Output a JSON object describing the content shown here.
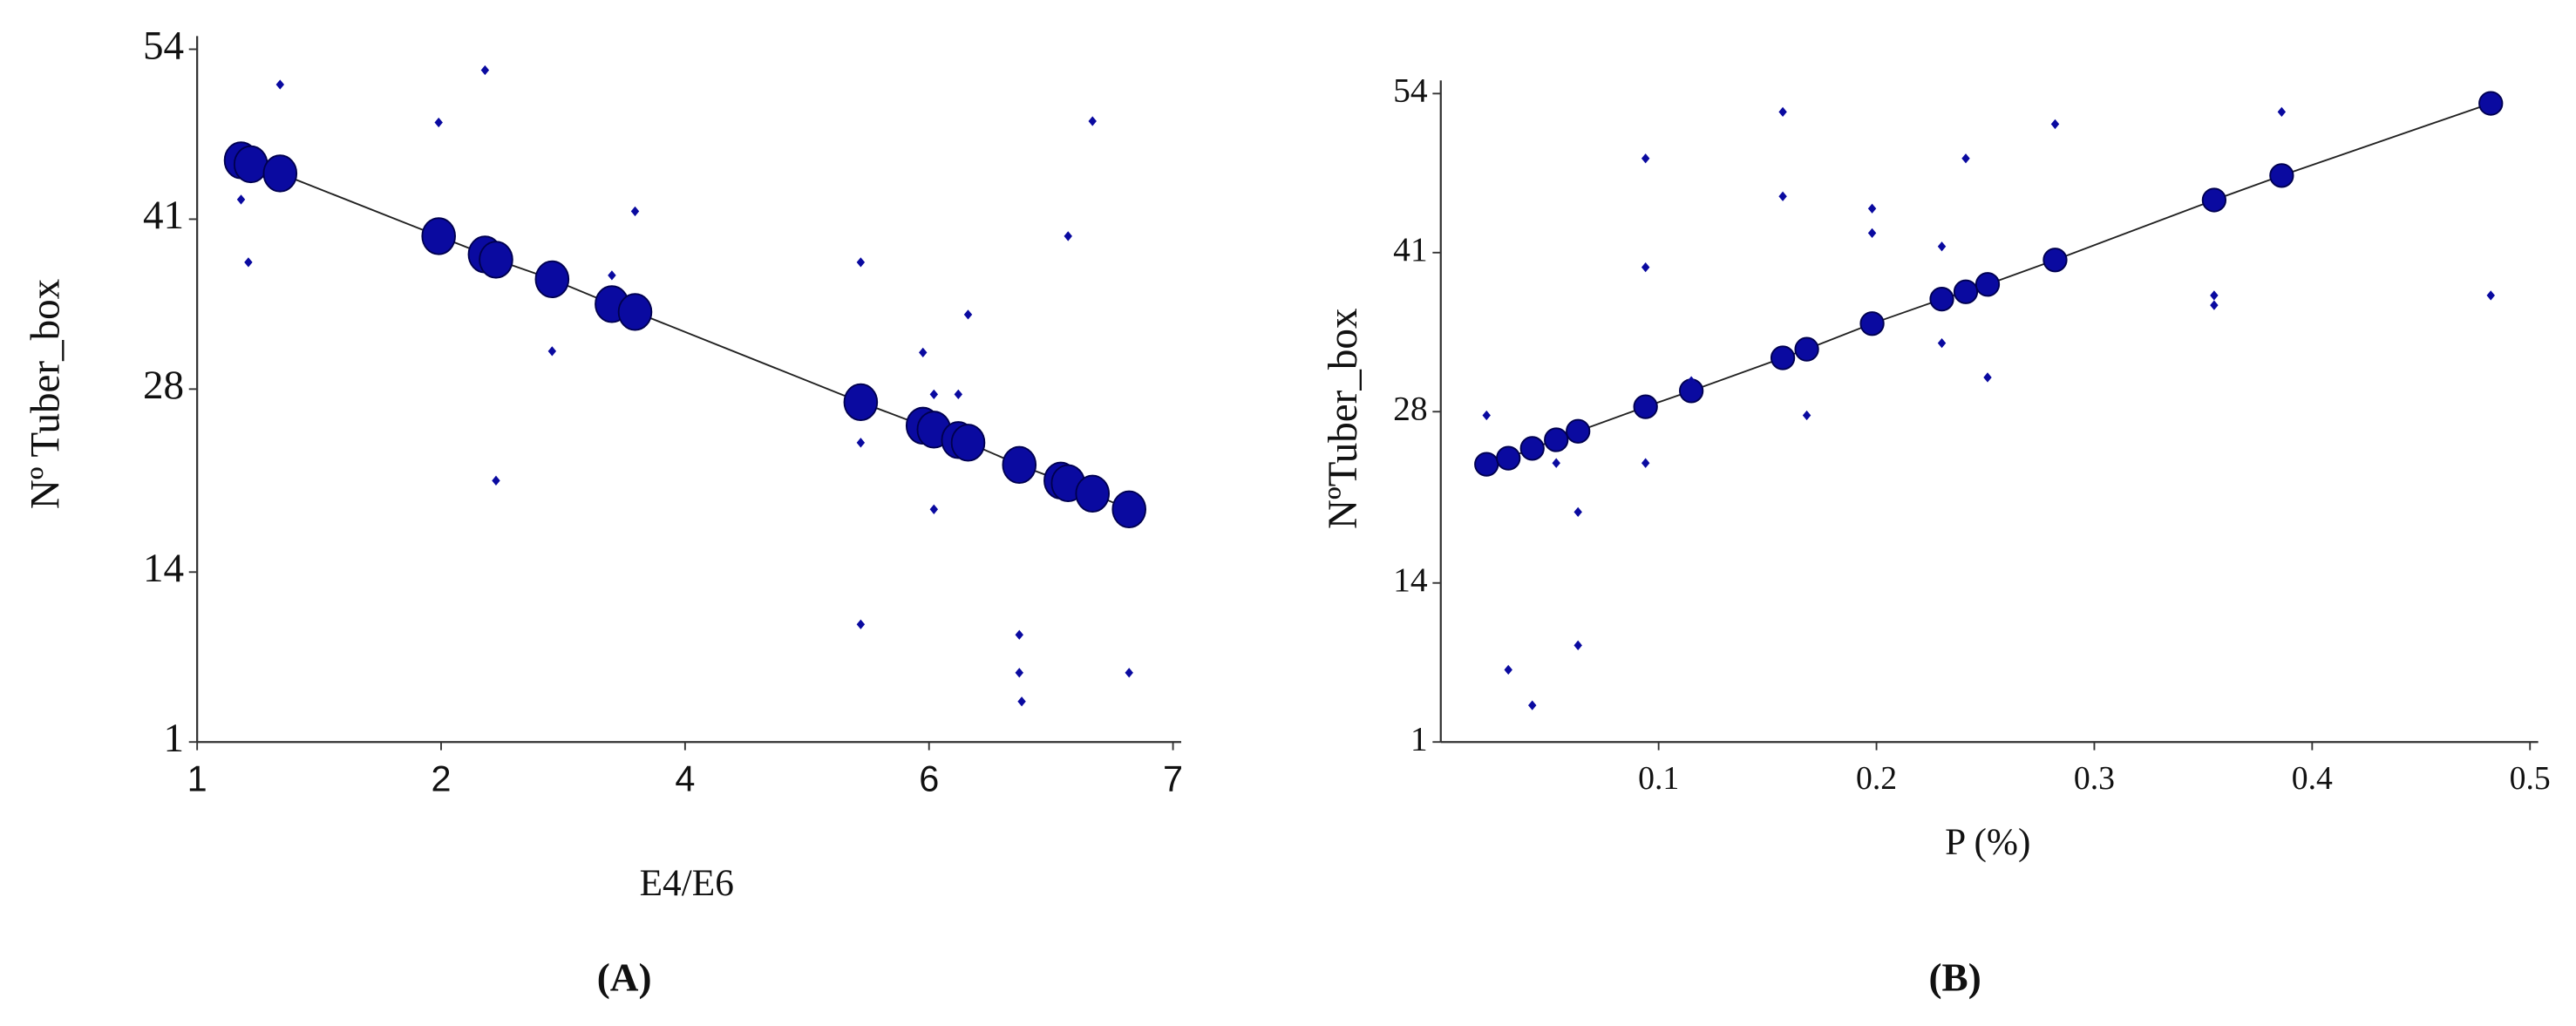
{
  "chart_data": [
    {
      "type": "scatter",
      "xlabel": "E4/E6",
      "ylabel": "Nº Tuber_box",
      "panel_label": "(A)",
      "xlim": [
        1,
        7
      ],
      "ylim": [
        1,
        54
      ],
      "xticks": [
        1,
        2,
        4,
        6,
        7
      ],
      "yticks": [
        54,
        41,
        28,
        14,
        1
      ],
      "xscale": "even-ticks",
      "series": [
        {
          "color": "#0a0aa0",
          "trend_line": true,
          "x": [
            1.18,
            1.22,
            1.34,
            1.99,
            2.36,
            2.45,
            2.91,
            3.4,
            3.59,
            5.44,
            5.95,
            6.02,
            6.12,
            6.16,
            6.37,
            6.54,
            6.57,
            6.67,
            6.82
          ],
          "values": [
            45.5,
            45.2,
            44.5,
            39.7,
            38.3,
            37.9,
            36.4,
            34.5,
            33.9,
            27.0,
            25.2,
            24.9,
            24.1,
            23.9,
            22.2,
            21.0,
            20.8,
            20.0,
            18.8
          ]
        },
        {
          "color": "#0a0aa0",
          "x": [
            1.34,
            1.99,
            2.36,
            1.18,
            1.21,
            3.59,
            3.4,
            2.91,
            2.45,
            5.44,
            5.44,
            5.95,
            6.02,
            6.12,
            6.16,
            6.02,
            5.44,
            6.37,
            6.37,
            6.38,
            6.57,
            6.67,
            6.82
          ],
          "values": [
            51.3,
            48.4,
            52.4,
            42.5,
            37.7,
            41.6,
            36.7,
            30.9,
            21.0,
            37.7,
            23.9,
            30.8,
            27.6,
            27.6,
            33.7,
            18.8,
            10.0,
            9.2,
            6.3,
            4.1,
            39.7,
            48.5,
            6.3
          ]
        }
      ]
    },
    {
      "type": "scatter",
      "xlabel": "P (%)",
      "ylabel": "NºTuber_box",
      "panel_label": "(B)",
      "xlim": [
        0,
        0.5
      ],
      "ylim": [
        1,
        54
      ],
      "xticks": [
        0.1,
        0.2,
        0.3,
        0.4,
        0.5
      ],
      "yticks": [
        54,
        41,
        28,
        14,
        1
      ],
      "xscale": "linear",
      "series": [
        {
          "color": "#0a0aa0",
          "trend_line": true,
          "x": [
            0.021,
            0.031,
            0.042,
            0.053,
            0.063,
            0.094,
            0.115,
            0.157,
            0.168,
            0.198,
            0.23,
            0.241,
            0.251,
            0.282,
            0.355,
            0.386,
            0.482
          ],
          "values": [
            23.7,
            24.2,
            25.0,
            25.7,
            26.4,
            28.4,
            29.7,
            32.4,
            33.1,
            35.2,
            37.2,
            37.8,
            38.4,
            40.4,
            45.3,
            47.3,
            53.2
          ]
        },
        {
          "color": "#0a0aa0",
          "x": [
            0.021,
            0.031,
            0.042,
            0.053,
            0.063,
            0.063,
            0.094,
            0.094,
            0.094,
            0.115,
            0.157,
            0.157,
            0.168,
            0.198,
            0.198,
            0.23,
            0.23,
            0.241,
            0.251,
            0.282,
            0.355,
            0.355,
            0.386,
            0.482
          ],
          "values": [
            27.7,
            6.9,
            4.0,
            23.8,
            19.8,
            8.9,
            48.7,
            39.8,
            23.8,
            30.5,
            52.5,
            45.6,
            27.7,
            44.6,
            42.6,
            41.5,
            33.6,
            48.7,
            30.8,
            51.5,
            37.5,
            36.7,
            52.5,
            37.5
          ]
        }
      ]
    }
  ]
}
